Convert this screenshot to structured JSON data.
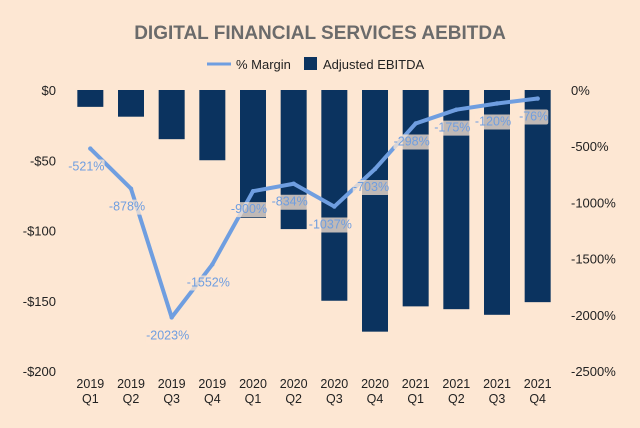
{
  "chart_data": {
    "type": "bar+line",
    "title": "DIGITAL FINANCIAL SERVICES AEBITDA",
    "categories": [
      [
        "2019",
        "Q1"
      ],
      [
        "2019",
        "Q2"
      ],
      [
        "2019",
        "Q3"
      ],
      [
        "2019",
        "Q4"
      ],
      [
        "2020",
        "Q1"
      ],
      [
        "2020",
        "Q2"
      ],
      [
        "2020",
        "Q3"
      ],
      [
        "2020",
        "Q4"
      ],
      [
        "2021",
        "Q1"
      ],
      [
        "2021",
        "Q2"
      ],
      [
        "2021",
        "Q3"
      ],
      [
        "2021",
        "Q4"
      ]
    ],
    "series": [
      {
        "name": "Adjusted EBITDA",
        "type": "bar",
        "axis": "left",
        "color": "#0b335f",
        "values": [
          -12,
          -19,
          -35,
          -50,
          -91,
          -99,
          -150,
          -172,
          -154,
          -156,
          -160,
          -151
        ]
      },
      {
        "name": "% Margin",
        "type": "line",
        "axis": "right",
        "color": "#6f9ee0",
        "values": [
          -521,
          -878,
          -2023,
          -1552,
          -900,
          -834,
          -1037,
          -703,
          -298,
          -175,
          -120,
          -76
        ],
        "labels": [
          "-521%",
          "-878%",
          "-2023%",
          "-1552%",
          "-900%",
          "-834%",
          "-1037%",
          "-703%",
          "-298%",
          "-175%",
          "-120%",
          "-76%"
        ]
      }
    ],
    "y_left": {
      "range": [
        -200,
        0
      ],
      "ticks": [
        0,
        -50,
        -100,
        -150,
        -200
      ],
      "tick_labels": [
        "$0",
        "-$50",
        "-$100",
        "-$150",
        "-$200"
      ]
    },
    "y_right": {
      "range": [
        -2500,
        0
      ],
      "ticks": [
        0,
        -500,
        -1000,
        -1500,
        -2000,
        -2500
      ],
      "tick_labels": [
        "0%",
        "-500%",
        "-1000%",
        "-1500%",
        "-2000%",
        "-2500%"
      ]
    },
    "legend": {
      "position": "top-center",
      "entries": [
        "% Margin",
        "Adjusted EBITDA"
      ]
    },
    "grid": false,
    "colors": {
      "background": "#fde7d3",
      "title": "#6b6b6b",
      "text": "#333333"
    }
  }
}
